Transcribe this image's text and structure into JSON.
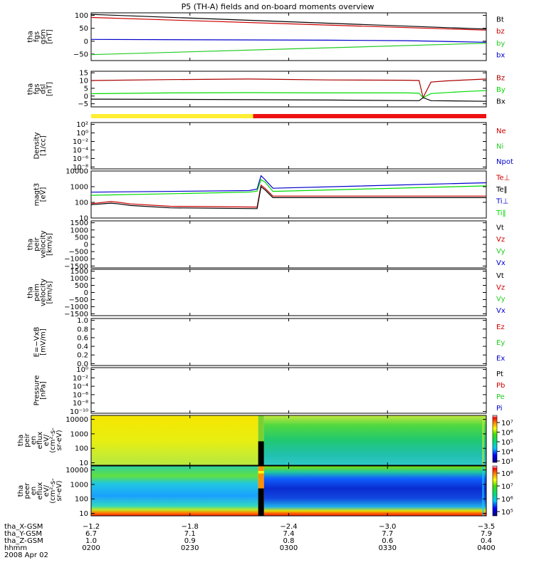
{
  "title": "P5 (TH-A) fields and on-board moments overview",
  "colors": {
    "black": "#000000",
    "red": "#cc0000",
    "green": "#22cc22",
    "blue": "#0000cc",
    "darkred": "#aa0000",
    "lightgreen": "#00dd00",
    "bar_yellow": "#ffee33",
    "bar_red": "#ee1111"
  },
  "chart_data": [
    {
      "type": "line",
      "id": "fgs_gsm",
      "ylabel": [
        "tha",
        "fgs",
        "gsm",
        "[nT]"
      ],
      "yticks": [
        "100",
        "50",
        "0",
        "−50"
      ],
      "ylim": [
        -75,
        110
      ],
      "legend": [
        {
          "name": "Bt",
          "color": "#000000"
        },
        {
          "name": "bz",
          "color": "#cc0000"
        },
        {
          "name": "by",
          "color": "#22cc22"
        },
        {
          "name": "bx",
          "color": "#0000cc"
        }
      ],
      "series": [
        {
          "name": "Bt",
          "color": "#000000",
          "x": [
            0,
            1
          ],
          "y": [
            104,
            47
          ]
        },
        {
          "name": "bz",
          "color": "#cc0000",
          "x": [
            0,
            1
          ],
          "y": [
            92,
            43
          ]
        },
        {
          "name": "by",
          "color": "#22cc22",
          "x": [
            0,
            1
          ],
          "y": [
            -52,
            -8
          ]
        },
        {
          "name": "bx",
          "color": "#0000cc",
          "x": [
            0,
            0.6,
            0.8,
            1
          ],
          "y": [
            7,
            4,
            2,
            -4
          ]
        }
      ]
    },
    {
      "type": "line",
      "id": "fgs_dsl",
      "ylabel": [
        "tha",
        "fgs",
        "dsl",
        "[nT]"
      ],
      "yticks": [
        "15",
        "10",
        "5",
        "0",
        "−5"
      ],
      "ylim": [
        -7,
        16
      ],
      "legend": [
        {
          "name": "Bz",
          "color": "#aa0000"
        },
        {
          "name": "By",
          "color": "#00dd00"
        },
        {
          "name": "Bx",
          "color": "#000000"
        }
      ],
      "series": [
        {
          "name": "Bz",
          "color": "#aa0000",
          "x": [
            0,
            0.2,
            0.4,
            0.6,
            0.8,
            0.83,
            0.84,
            0.86,
            0.9,
            1
          ],
          "y": [
            10,
            10.6,
            11,
            10.4,
            10.2,
            10,
            -1,
            9,
            9.8,
            11
          ]
        },
        {
          "name": "By",
          "color": "#00dd00",
          "x": [
            0,
            0.2,
            0.4,
            0.6,
            0.8,
            0.83,
            0.84,
            0.86,
            0.95,
            1
          ],
          "y": [
            1.5,
            2,
            2.2,
            2,
            2,
            1.8,
            -1,
            1.6,
            3,
            3.5
          ]
        },
        {
          "name": "Bx",
          "color": "#000000",
          "x": [
            0,
            0.3,
            0.6,
            0.83,
            0.84,
            0.86,
            1
          ],
          "y": [
            -2,
            -2.2,
            -2.6,
            -3,
            -1,
            -3,
            -3.4
          ]
        }
      ]
    },
    {
      "type": "bar",
      "id": "mode_bar",
      "segments": [
        {
          "x0": 0,
          "x1": 0.41,
          "color": "#ffee33"
        },
        {
          "x0": 0.41,
          "x1": 1,
          "color": "#ee1111"
        }
      ]
    },
    {
      "type": "line",
      "id": "density",
      "ylabel": [
        "Density",
        "[1/cc]"
      ],
      "yticks": [
        "10²",
        "10⁰",
        "10⁻²",
        "10⁻⁴",
        "10⁻⁶",
        "10⁻⁸"
      ],
      "legend": [
        {
          "name": "Ne",
          "color": "#cc0000"
        },
        {
          "name": "Ni",
          "color": "#22cc22"
        },
        {
          "name": "Npot",
          "color": "#0000cc"
        }
      ],
      "series": []
    },
    {
      "type": "line",
      "id": "temperature",
      "ylabel": [
        "magt3",
        "[eV]"
      ],
      "log": true,
      "yticks": [
        "10000",
        "1000",
        "100",
        "10"
      ],
      "ylim_log": [
        1,
        4
      ],
      "legend": [
        {
          "name": "Te⊥",
          "color": "#cc0000"
        },
        {
          "name": "Te‖",
          "color": "#000000"
        },
        {
          "name": "Ti⊥",
          "color": "#0000cc"
        },
        {
          "name": "Ti‖",
          "color": "#00dd00"
        }
      ],
      "series": [
        {
          "name": "Ti⊥",
          "color": "#0000cc",
          "x": [
            0,
            0.4,
            0.42,
            0.43,
            0.44,
            0.46,
            1
          ],
          "y": [
            2.65,
            2.75,
            2.85,
            3.7,
            3.45,
            2.9,
            3.25
          ]
        },
        {
          "name": "Ti‖",
          "color": "#00dd00",
          "x": [
            0,
            0.4,
            0.42,
            0.43,
            0.44,
            0.46,
            1
          ],
          "y": [
            2.45,
            2.65,
            2.72,
            3.45,
            3.3,
            2.7,
            3.05
          ]
        },
        {
          "name": "Te⊥",
          "color": "#cc0000",
          "x": [
            0,
            0.05,
            0.07,
            0.1,
            0.2,
            0.42,
            0.43,
            0.44,
            0.46,
            1
          ],
          "y": [
            1.92,
            2.05,
            2.0,
            1.9,
            1.75,
            1.7,
            3.1,
            2.9,
            2.4,
            2.4
          ]
        },
        {
          "name": "Te‖",
          "color": "#000000",
          "x": [
            0,
            0.05,
            0.07,
            0.1,
            0.2,
            0.42,
            0.43,
            0.44,
            0.46,
            1
          ],
          "y": [
            1.85,
            1.95,
            1.9,
            1.8,
            1.65,
            1.6,
            3.0,
            2.8,
            2.3,
            2.3
          ]
        }
      ]
    },
    {
      "type": "line",
      "id": "peir_velocity",
      "ylabel": [
        "tha",
        "peir",
        "velocity",
        "[km/s]"
      ],
      "yticks": [
        "1500",
        "1000",
        "500",
        "0",
        "−500",
        "−1000",
        "−1500"
      ],
      "legend": [
        {
          "name": "Vt",
          "color": "#000000"
        },
        {
          "name": "Vz",
          "color": "#cc0000"
        },
        {
          "name": "Vy",
          "color": "#22cc22"
        },
        {
          "name": "Vx",
          "color": "#0000cc"
        }
      ],
      "series": []
    },
    {
      "type": "line",
      "id": "peim_velocity",
      "ylabel": [
        "tha",
        "peim",
        "velocity",
        "[km/s]"
      ],
      "yticks": [
        "1500",
        "1000",
        "500",
        "0",
        "−500",
        "−1000",
        "−1500"
      ],
      "legend": [
        {
          "name": "Vt",
          "color": "#000000"
        },
        {
          "name": "Vz",
          "color": "#cc0000"
        },
        {
          "name": "Vy",
          "color": "#22cc22"
        },
        {
          "name": "Vx",
          "color": "#0000cc"
        }
      ],
      "series": []
    },
    {
      "type": "line",
      "id": "efield",
      "ylabel": [
        "E=−VxB",
        "[mV/m]"
      ],
      "yticks": [
        "1.0",
        "0.8",
        "0.6",
        "0.4",
        "0.2",
        "0.0"
      ],
      "legend": [
        {
          "name": "Ez",
          "color": "#cc0000"
        },
        {
          "name": "Ey",
          "color": "#22cc22"
        },
        {
          "name": "Ex",
          "color": "#0000cc"
        }
      ],
      "series": []
    },
    {
      "type": "line",
      "id": "pressure",
      "ylabel": [
        "Pressure",
        "[nPa]"
      ],
      "yticks": [
        "10⁰",
        "10⁻²",
        "10⁻⁴",
        "10⁻⁶",
        "10⁻⁸",
        "10⁻¹⁰"
      ],
      "legend": [
        {
          "name": "Pt",
          "color": "#000000"
        },
        {
          "name": "Pb",
          "color": "#cc0000"
        },
        {
          "name": "Pe",
          "color": "#22cc22"
        },
        {
          "name": "Pi",
          "color": "#0000cc"
        }
      ],
      "series": []
    },
    {
      "type": "heatmap",
      "id": "peir_ion",
      "ylabel": [
        "tha",
        "peir",
        "en",
        "eflux",
        "eV/",
        "(cm²-s-",
        "sr-eV)"
      ],
      "yticks": [
        "10000",
        "1000",
        "100",
        "10"
      ],
      "colorbar_ticks": [
        "10⁷",
        "10⁶",
        "10⁵",
        "10⁴",
        "10³"
      ]
    },
    {
      "type": "heatmap",
      "id": "peer_electron",
      "ylabel": [
        "tha",
        "peer",
        "en",
        "eflux",
        "eV/",
        "(cm²-s-",
        "sr-eV)"
      ],
      "yticks": [
        "10000",
        "1000",
        "100",
        "10"
      ],
      "colorbar_ticks": [
        "10⁸",
        "10⁷",
        "10⁶",
        "10⁵"
      ]
    }
  ],
  "xaxis": {
    "row_labels": [
      "tha_X-GSM",
      "tha_Y-GSM",
      "tha_Z-GSM",
      "hhmm",
      "2008 Apr 02"
    ],
    "columns": [
      {
        "x": 0.0,
        "values": [
          "−1.2",
          "6.7",
          "1.0",
          "0200"
        ]
      },
      {
        "x": 0.25,
        "values": [
          "−1.8",
          "7.1",
          "0.9",
          "0230"
        ]
      },
      {
        "x": 0.5,
        "values": [
          "−2.4",
          "7.4",
          "0.8",
          "0300"
        ]
      },
      {
        "x": 0.75,
        "values": [
          "−3.0",
          "7.7",
          "0.6",
          "0330"
        ]
      },
      {
        "x": 1.0,
        "values": [
          "−3.5",
          "7.9",
          "0.4",
          "0400"
        ]
      }
    ]
  }
}
